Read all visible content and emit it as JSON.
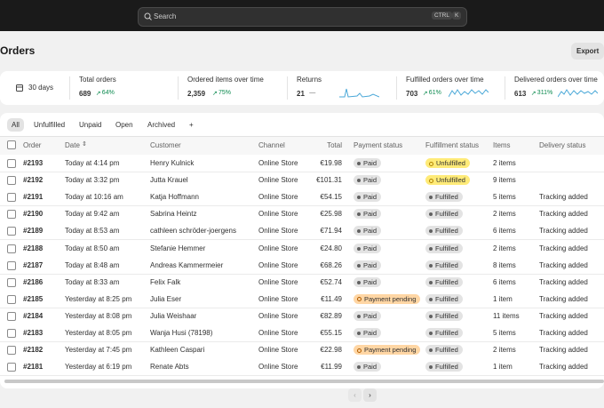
{
  "search": {
    "placeholder": "Search",
    "shortcut": [
      "CTRL",
      "K"
    ]
  },
  "header": {
    "title": "Orders",
    "export": "Export"
  },
  "stats": {
    "period": "30 days",
    "metrics": [
      {
        "label": "Total orders",
        "value": "689",
        "change": "64%"
      },
      {
        "label": "Ordered items over time",
        "value": "2,359",
        "change": "75%"
      },
      {
        "label": "Returns",
        "value": "21",
        "change": "—"
      },
      {
        "label": "Fulfilled orders over time",
        "value": "703",
        "change": "61%"
      },
      {
        "label": "Delivered orders over time",
        "value": "613",
        "change": "311%"
      }
    ]
  },
  "tabs": [
    "All",
    "Unfulfilled",
    "Unpaid",
    "Open",
    "Archived",
    "+"
  ],
  "table": {
    "columns": [
      "Order",
      "Date",
      "Customer",
      "Channel",
      "Total",
      "Payment status",
      "Fulfillment status",
      "Items",
      "Delivery status"
    ],
    "rows": [
      [
        "#2193",
        "Today at 4:14 pm",
        "Henry Kulnick",
        "Online Store",
        "€19.98",
        "Paid",
        "Unfulfilled",
        "2 items",
        null
      ],
      [
        "#2192",
        "Today at 3:32 pm",
        "Jutta Krauel",
        "Online Store",
        "€101.31",
        "Paid",
        "Unfulfilled",
        "9 items",
        null
      ],
      [
        "#2191",
        "Today at 10:16 am",
        "Katja Hoffmann",
        "Online Store",
        "€54.15",
        "Paid",
        "Fulfilled",
        "5 items",
        "Tracking added"
      ],
      [
        "#2190",
        "Today at 9:42 am",
        "Sabrina Heintz",
        "Online Store",
        "€25.98",
        "Paid",
        "Fulfilled",
        "2 items",
        "Tracking added"
      ],
      [
        "#2189",
        "Today at 8:53 am",
        "cathleen schröder-joergens",
        "Online Store",
        "€71.94",
        "Paid",
        "Fulfilled",
        "6 items",
        "Tracking added"
      ],
      [
        "#2188",
        "Today at 8:50 am",
        "Stefanie Hemmer",
        "Online Store",
        "€24.80",
        "Paid",
        "Fulfilled",
        "2 items",
        "Tracking added"
      ],
      [
        "#2187",
        "Today at 8:48 am",
        "Andreas Kammermeier",
        "Online Store",
        "€68.26",
        "Paid",
        "Fulfilled",
        "8 items",
        "Tracking added"
      ],
      [
        "#2186",
        "Today at 8:33 am",
        "Felix Falk",
        "Online Store",
        "€52.74",
        "Paid",
        "Fulfilled",
        "6 items",
        "Tracking added"
      ],
      [
        "#2185",
        "Yesterday at 8:25 pm",
        "Julia Eser",
        "Online Store",
        "€11.49",
        "Payment pending",
        "Fulfilled",
        "1 item",
        "Tracking added"
      ],
      [
        "#2184",
        "Yesterday at 8:08 pm",
        "Julia Weishaar",
        "Online Store",
        "€82.89",
        "Paid",
        "Fulfilled",
        "11 items",
        "Tracking added"
      ],
      [
        "#2183",
        "Yesterday at 8:05 pm",
        "Wanja Husi (78198)",
        "Online Store",
        "€55.15",
        "Paid",
        "Fulfilled",
        "5 items",
        "Tracking added"
      ],
      [
        "#2182",
        "Yesterday at 7:45 pm",
        "Kathleen Caspari",
        "Online Store",
        "€22.98",
        "Payment pending",
        "Fulfilled",
        "2 items",
        "Tracking added"
      ],
      [
        "#2181",
        "Yesterday at 6:19 pm",
        "Renate Abts",
        "Online Store",
        "€11.99",
        "Paid",
        "Fulfilled",
        "1 item",
        "Tracking added"
      ]
    ]
  }
}
